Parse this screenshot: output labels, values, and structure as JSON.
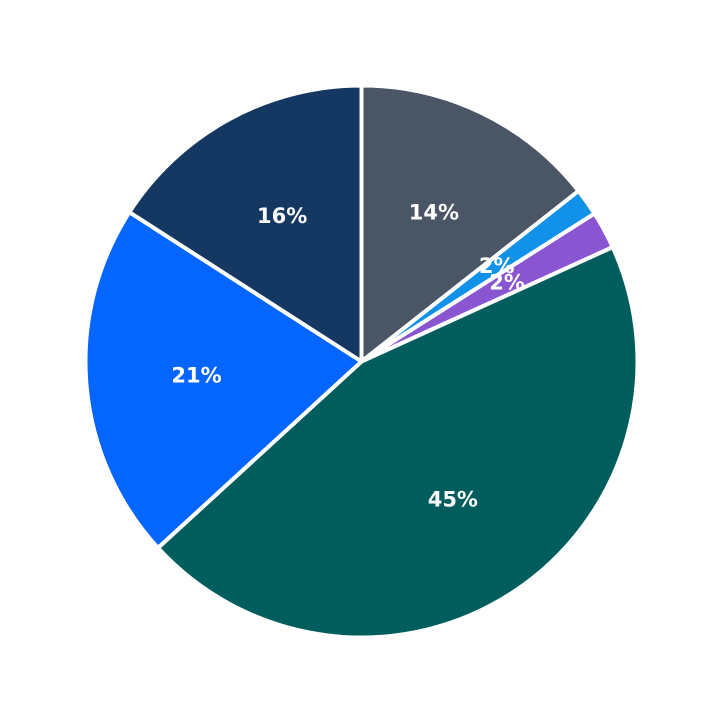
{
  "chart_data": {
    "type": "pie",
    "start_angle_deg": 90,
    "direction": "clockwise",
    "grid": false,
    "legend": "none",
    "slices": [
      {
        "value": 14.4,
        "label": "14%",
        "color": "#4a5565"
      },
      {
        "value": 1.6,
        "label": "2%",
        "color": "#1192e8"
      },
      {
        "value": 2.2,
        "label": "2%",
        "color": "#8a55d0"
      },
      {
        "value": 45.0,
        "label": "45%",
        "color": "#005d5d"
      },
      {
        "value": 20.9,
        "label": "21%",
        "color": "#0565ff"
      },
      {
        "value": 15.9,
        "label": "16%",
        "color": "#143862"
      }
    ]
  }
}
